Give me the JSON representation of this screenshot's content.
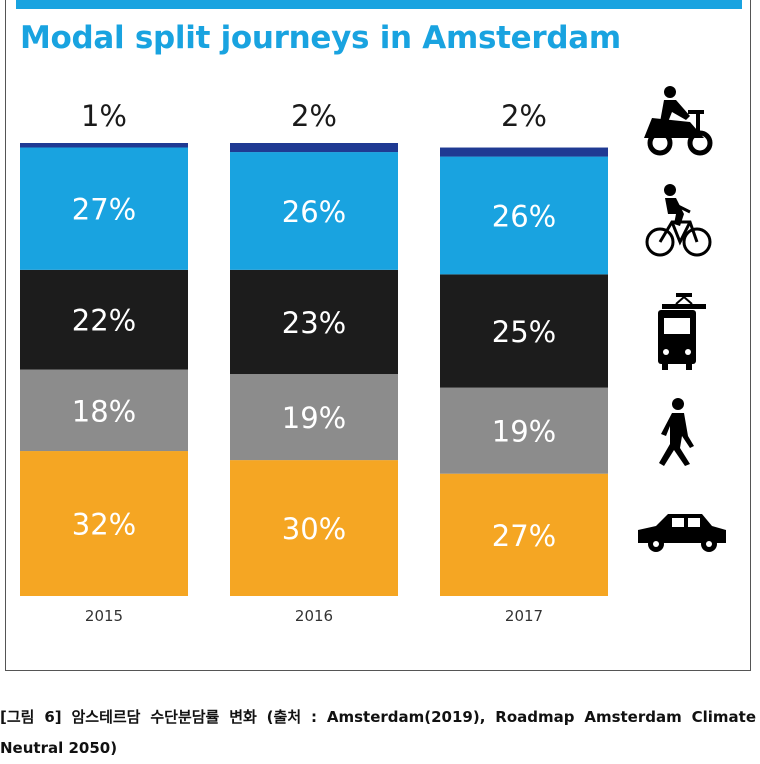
{
  "chart_data": {
    "type": "bar",
    "stacked": true,
    "title": "Modal split journeys in Amsterdam",
    "categories": [
      "2015",
      "2016",
      "2017"
    ],
    "series": [
      {
        "key": "car",
        "icon": "car-icon",
        "color": "#f5a623",
        "values": [
          32,
          30,
          27
        ]
      },
      {
        "key": "walking",
        "icon": "pedestrian-icon",
        "color": "#8c8c8c",
        "values": [
          18,
          19,
          19
        ]
      },
      {
        "key": "public-transport",
        "icon": "tram-icon",
        "color": "#1c1c1c",
        "values": [
          22,
          23,
          25
        ]
      },
      {
        "key": "bicycle",
        "icon": "bicycle-icon",
        "color": "#19a3e0",
        "values": [
          27,
          26,
          26
        ]
      },
      {
        "key": "moped",
        "icon": "scooter-icon",
        "color": "#1f3a93",
        "values": [
          1,
          2,
          2
        ]
      }
    ],
    "labels": {
      "car": [
        "32%",
        "30%",
        "27%"
      ],
      "walking": [
        "18%",
        "19%",
        "19%"
      ],
      "public-transport": [
        "22%",
        "23%",
        "25%"
      ],
      "bicycle": [
        "27%",
        "26%",
        "26%"
      ],
      "moped": [
        "1%",
        "2%",
        "2%"
      ]
    },
    "xlabel": "",
    "ylabel": "",
    "ylim": [
      0,
      100
    ],
    "grid": false,
    "legend": "right (icons)"
  },
  "caption": "[그림 6] 암스테르담 수단분담률 변화 (출처 : Amsterdam(2019), Roadmap Amsterdam Climate Neutral 2050)"
}
